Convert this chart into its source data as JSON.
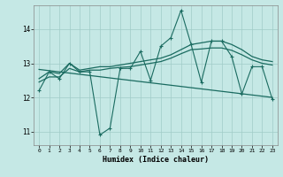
{
  "xlabel": "Humidex (Indice chaleur)",
  "bg_color": "#c5e8e5",
  "grid_color": "#a0ccc8",
  "line_color": "#1a6b60",
  "xlim": [
    -0.5,
    23.5
  ],
  "ylim": [
    10.6,
    14.7
  ],
  "xticks": [
    0,
    1,
    2,
    3,
    4,
    5,
    6,
    7,
    8,
    9,
    10,
    11,
    12,
    13,
    14,
    15,
    16,
    17,
    18,
    19,
    20,
    21,
    22,
    23
  ],
  "yticks": [
    11,
    12,
    13,
    14
  ],
  "line1_x": [
    0,
    1,
    2,
    3,
    4,
    5,
    6,
    7,
    8,
    9,
    10,
    11,
    12,
    13,
    14,
    15,
    16,
    17,
    18,
    19,
    20,
    21,
    22,
    23
  ],
  "line1_y": [
    12.2,
    12.75,
    12.55,
    13.0,
    12.75,
    12.75,
    10.9,
    11.1,
    12.85,
    12.85,
    13.35,
    12.5,
    13.5,
    13.75,
    14.55,
    13.55,
    12.45,
    13.65,
    13.65,
    13.2,
    12.1,
    12.9,
    12.9,
    11.95
  ],
  "line2_x": [
    0,
    1,
    2,
    3,
    4,
    5,
    6,
    7,
    8,
    9,
    10,
    11,
    12,
    13,
    14,
    15,
    16,
    17,
    18,
    19,
    20,
    21,
    22,
    23
  ],
  "line2_y": [
    12.55,
    12.75,
    12.7,
    13.0,
    12.8,
    12.85,
    12.9,
    12.9,
    12.95,
    13.0,
    13.05,
    13.1,
    13.15,
    13.25,
    13.4,
    13.55,
    13.6,
    13.65,
    13.65,
    13.55,
    13.4,
    13.2,
    13.1,
    13.05
  ],
  "line3_x": [
    0,
    1,
    2,
    3,
    4,
    5,
    6,
    7,
    8,
    9,
    10,
    11,
    12,
    13,
    14,
    15,
    16,
    17,
    18,
    19,
    20,
    21,
    22,
    23
  ],
  "line3_y": [
    12.45,
    12.6,
    12.6,
    12.85,
    12.75,
    12.8,
    12.8,
    12.85,
    12.88,
    12.9,
    12.95,
    13.0,
    13.05,
    13.15,
    13.28,
    13.4,
    13.42,
    13.45,
    13.45,
    13.38,
    13.25,
    13.1,
    13.0,
    12.95
  ],
  "line4_x": [
    0,
    23
  ],
  "line4_y": [
    12.82,
    12.0
  ]
}
